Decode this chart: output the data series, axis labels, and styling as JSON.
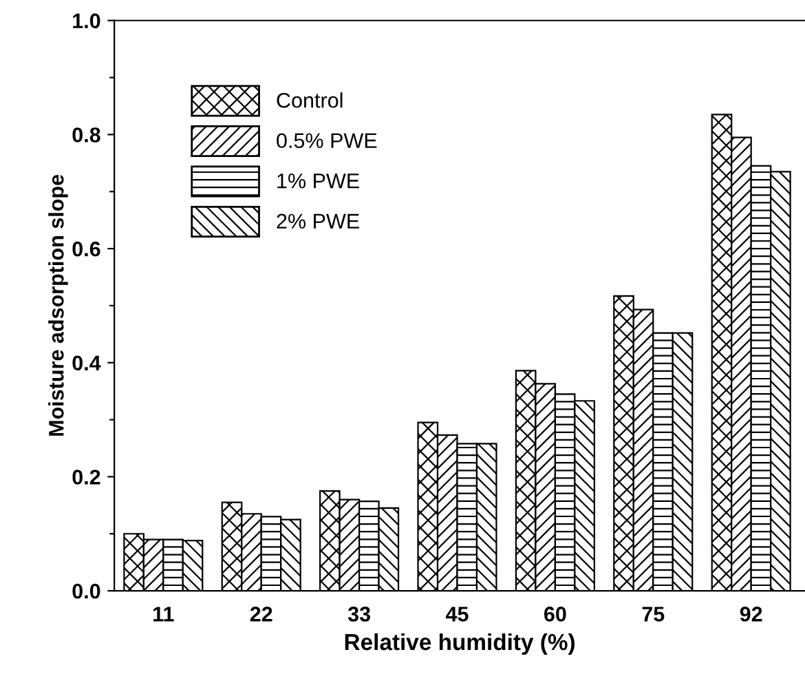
{
  "chart_data": {
    "type": "bar",
    "xlabel": "Relative humidity (%)",
    "ylabel": "Moisture adsorption slope",
    "categories": [
      "11",
      "22",
      "33",
      "45",
      "60",
      "75",
      "92"
    ],
    "series": [
      {
        "name": "Control",
        "color": "#000000",
        "values": [
          0.1,
          0.155,
          0.175,
          0.295,
          0.386,
          0.517,
          0.835
        ]
      },
      {
        "name": "0.5% PWE",
        "color": "#000000",
        "values": [
          0.09,
          0.135,
          0.16,
          0.273,
          0.363,
          0.493,
          0.795
        ]
      },
      {
        "name": "1% PWE",
        "color": "#000000",
        "values": [
          0.09,
          0.13,
          0.157,
          0.258,
          0.345,
          0.452,
          0.745
        ]
      },
      {
        "name": "2% PWE",
        "color": "#000000",
        "values": [
          0.088,
          0.125,
          0.145,
          0.258,
          0.333,
          0.452,
          0.735
        ]
      }
    ],
    "ylim": [
      0,
      1.0
    ],
    "yticks": [
      {
        "value": 0,
        "label": "0.0"
      },
      {
        "value": 0.1,
        "label": null
      },
      {
        "value": 0.2,
        "label": "0.2"
      },
      {
        "value": 0.3,
        "label": null
      },
      {
        "value": 0.4,
        "label": "0.4"
      },
      {
        "value": 0.5,
        "label": null
      },
      {
        "value": 0.6,
        "label": "0.6"
      },
      {
        "value": 0.7,
        "label": null
      },
      {
        "value": 0.8,
        "label": "0.8"
      },
      {
        "value": 0.9,
        "label": null
      },
      {
        "value": 1.0,
        "label": "1.0"
      }
    ],
    "legend": "top left",
    "grid": false
  }
}
